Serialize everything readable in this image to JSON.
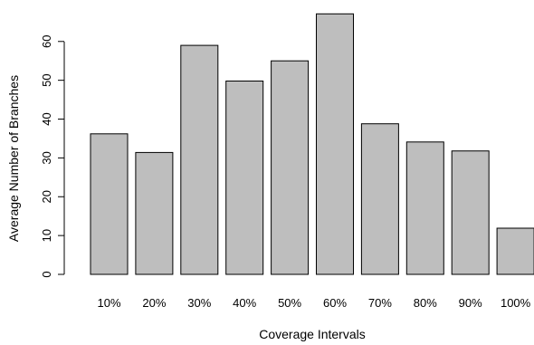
{
  "chart_data": {
    "type": "bar",
    "categories": [
      "10%",
      "20%",
      "30%",
      "40%",
      "50%",
      "60%",
      "70%",
      "80%",
      "90%",
      "100%"
    ],
    "values": [
      36.2,
      31.4,
      59.0,
      49.8,
      55.0,
      67.1,
      38.8,
      34.1,
      31.8,
      11.9
    ],
    "title": "",
    "xlabel": "Coverage Intervals",
    "ylabel": "Average Number of Branches",
    "ylim": [
      0,
      67.1
    ],
    "yticks": [
      0,
      10,
      20,
      30,
      40,
      50,
      60
    ],
    "bar_color": "#bebebe",
    "grid": false,
    "legend": "none"
  }
}
